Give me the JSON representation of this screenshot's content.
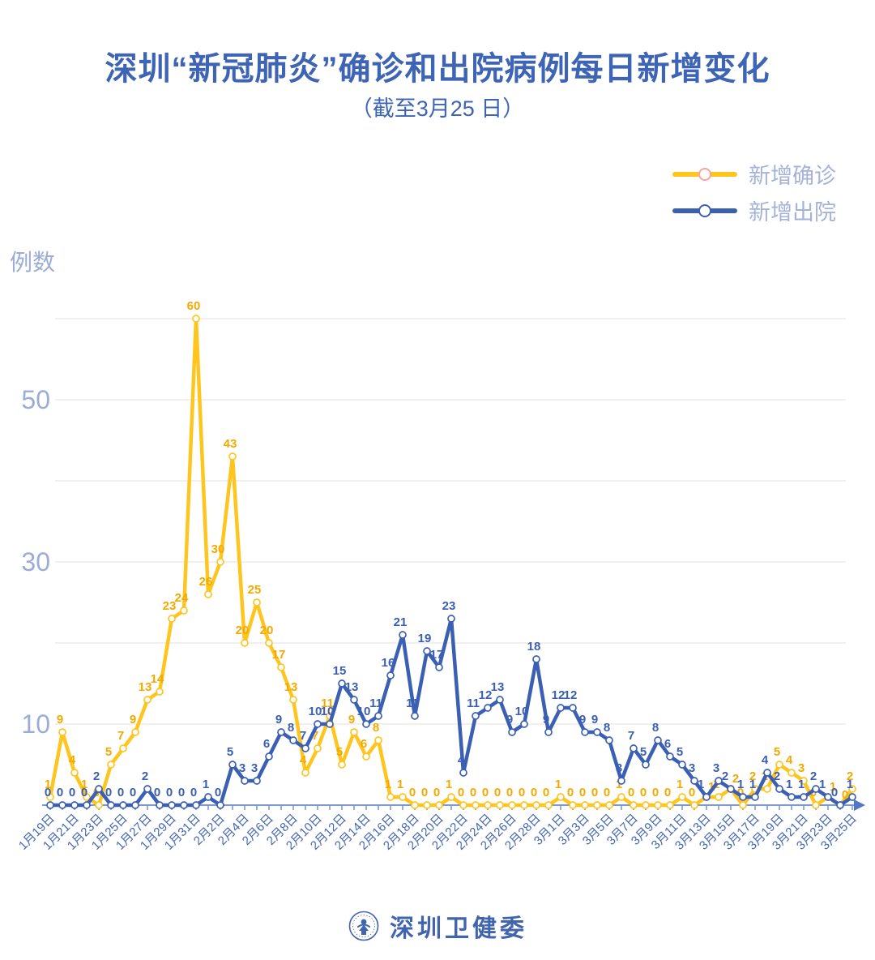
{
  "title": "深圳“新冠肺炎”确诊和出院病例每日新增变化",
  "subtitle": "（截至3月25 日）",
  "legend": {
    "items": [
      {
        "label": "新增确诊",
        "line_color": "#ffc51f",
        "marker_stroke": "#f2a6a0"
      },
      {
        "label": "新增出院",
        "line_color": "#3b5fb2",
        "marker_stroke": "#3b5fb2"
      }
    ]
  },
  "y_axis": {
    "label": "例数",
    "tick_labels": [
      10,
      30,
      50
    ],
    "gridlines": [
      10,
      20,
      30,
      40,
      50,
      60
    ],
    "max": 60
  },
  "footer": {
    "org_name": "深圳卫健委"
  },
  "colors": {
    "title_blue": "#3e64b5",
    "light_blue_text": "#9cacd8",
    "x_label_blue": "#4366b2",
    "axis_blue": "#5377c6",
    "gridline_gray": "#e7e7e7",
    "confirmed_yellow": "#ffc51f",
    "confirmed_label_yellow": "#f3a900",
    "discharged_blue": "#3b5fb2"
  },
  "chart_data": {
    "type": "line",
    "title": "深圳“新冠肺炎”确诊和出院病例每日新增变化",
    "subtitle": "（截至3月25 日）",
    "ylabel": "例数",
    "ylim": [
      0,
      60
    ],
    "grid": true,
    "legend_position": "top-right",
    "x_tick_every": 2,
    "dates": [
      "1月19日",
      "1月20日",
      "1月21日",
      "1月22日",
      "1月23日",
      "1月24日",
      "1月25日",
      "1月26日",
      "1月27日",
      "1月28日",
      "1月29日",
      "1月30日",
      "1月31日",
      "2月1日",
      "2月2日",
      "2月3日",
      "2月4日",
      "2月5日",
      "2月6日",
      "2月7日",
      "2月8日",
      "2月9日",
      "2月10日",
      "2月11日",
      "2月12日",
      "2月13日",
      "2月14日",
      "2月15日",
      "2月16日",
      "2月17日",
      "2月18日",
      "2月19日",
      "2月20日",
      "2月21日",
      "2月22日",
      "2月23日",
      "2月24日",
      "2月25日",
      "2月26日",
      "2月27日",
      "2月28日",
      "2月29日",
      "3月1日",
      "3月2日",
      "3月3日",
      "3月4日",
      "3月5日",
      "3月6日",
      "3月7日",
      "3月8日",
      "3月9日",
      "3月10日",
      "3月11日",
      "3月12日",
      "3月13日",
      "3月14日",
      "3月15日",
      "3月16日",
      "3月17日",
      "3月18日",
      "3月19日",
      "3月20日",
      "3月21日",
      "3月22日",
      "3月23日",
      "3月24日",
      "3月25日"
    ],
    "series": [
      {
        "name": "新增确诊",
        "color": "#ffc51f",
        "label_color": "#f3a900",
        "values": [
          1,
          9,
          4,
          1,
          0,
          5,
          7,
          9,
          13,
          14,
          23,
          24,
          60,
          26,
          30,
          43,
          20,
          25,
          20,
          17,
          13,
          4,
          7,
          11,
          5,
          9,
          6,
          8,
          1,
          1,
          0,
          0,
          0,
          1,
          0,
          0,
          0,
          0,
          0,
          0,
          0,
          0,
          1,
          0,
          0,
          0,
          0,
          1,
          0,
          0,
          0,
          0,
          1,
          0,
          1,
          1,
          2,
          0,
          2,
          2,
          5,
          4,
          3,
          0,
          1,
          0,
          2
        ]
      },
      {
        "name": "新增出院",
        "color": "#3b5fb2",
        "label_color": "#3b5fb2",
        "values": [
          0,
          0,
          0,
          0,
          2,
          0,
          0,
          0,
          2,
          0,
          0,
          0,
          0,
          1,
          0,
          5,
          3,
          3,
          6,
          9,
          8,
          7,
          10,
          10,
          15,
          13,
          10,
          11,
          16,
          21,
          11,
          19,
          17,
          23,
          4,
          11,
          12,
          13,
          9,
          10,
          18,
          9,
          12,
          12,
          9,
          9,
          8,
          3,
          7,
          5,
          8,
          6,
          5,
          3,
          1,
          3,
          2,
          1,
          1,
          4,
          2,
          1,
          1,
          2,
          1,
          0,
          1
        ]
      }
    ]
  }
}
